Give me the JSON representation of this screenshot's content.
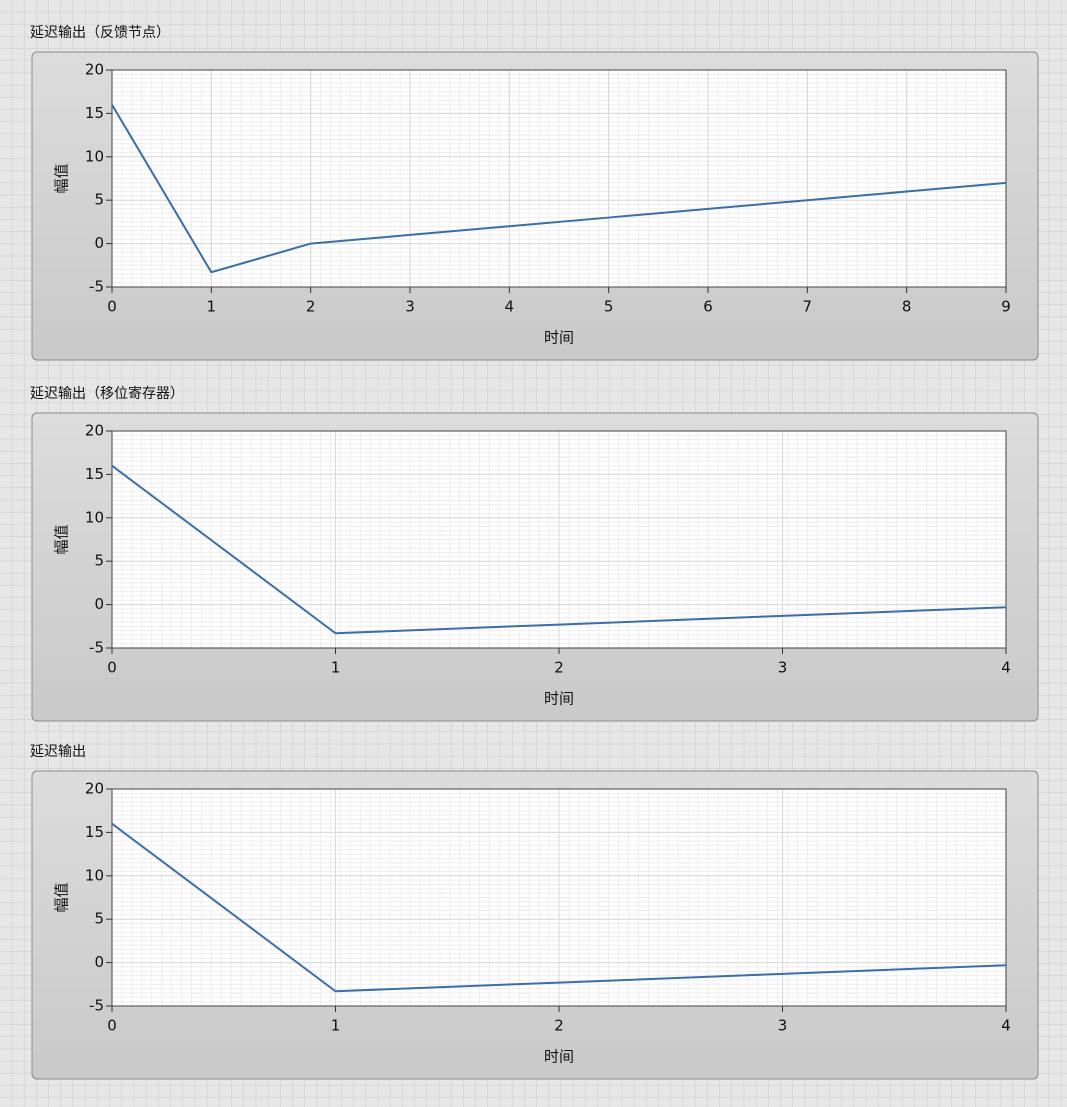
{
  "chart_data": [
    {
      "type": "line",
      "title": "延迟输出（反馈节点）",
      "x_label": "时间",
      "y_label": "幅值",
      "x": [
        0,
        1,
        2,
        3,
        4,
        5,
        6,
        7,
        8,
        9
      ],
      "values": [
        16,
        -3.3,
        0,
        1,
        2,
        3,
        4,
        5,
        6,
        7
      ],
      "color": "#3a6ea8",
      "xlim": [
        0,
        9
      ],
      "xticks": [
        0,
        1,
        2,
        3,
        4,
        5,
        6,
        7,
        8,
        9
      ],
      "ylim": [
        -5,
        20
      ],
      "yticks": [
        -5,
        0,
        5,
        10,
        15,
        20
      ],
      "grid": true
    },
    {
      "type": "line",
      "title": "延迟输出（移位寄存器）",
      "x_label": "时间",
      "y_label": "幅值",
      "x": [
        0,
        1,
        2,
        3,
        4
      ],
      "values": [
        16,
        -3.3,
        -2.3,
        -1.3,
        -0.3
      ],
      "color": "#3a6ea8",
      "xlim": [
        0,
        4
      ],
      "xticks": [
        0,
        1,
        2,
        3,
        4
      ],
      "ylim": [
        -5,
        20
      ],
      "yticks": [
        -5,
        0,
        5,
        10,
        15,
        20
      ],
      "grid": true
    },
    {
      "type": "line",
      "title": "延迟输出",
      "x_label": "时间",
      "y_label": "幅值",
      "x": [
        0,
        1,
        2,
        3,
        4
      ],
      "values": [
        16,
        -3.3,
        -2.3,
        -1.3,
        -0.3
      ],
      "color": "#3a6ea8",
      "xlim": [
        0,
        4
      ],
      "xticks": [
        0,
        1,
        2,
        3,
        4
      ],
      "ylim": [
        -5,
        20
      ],
      "yticks": [
        -5,
        0,
        5,
        10,
        15,
        20
      ],
      "grid": true
    }
  ]
}
